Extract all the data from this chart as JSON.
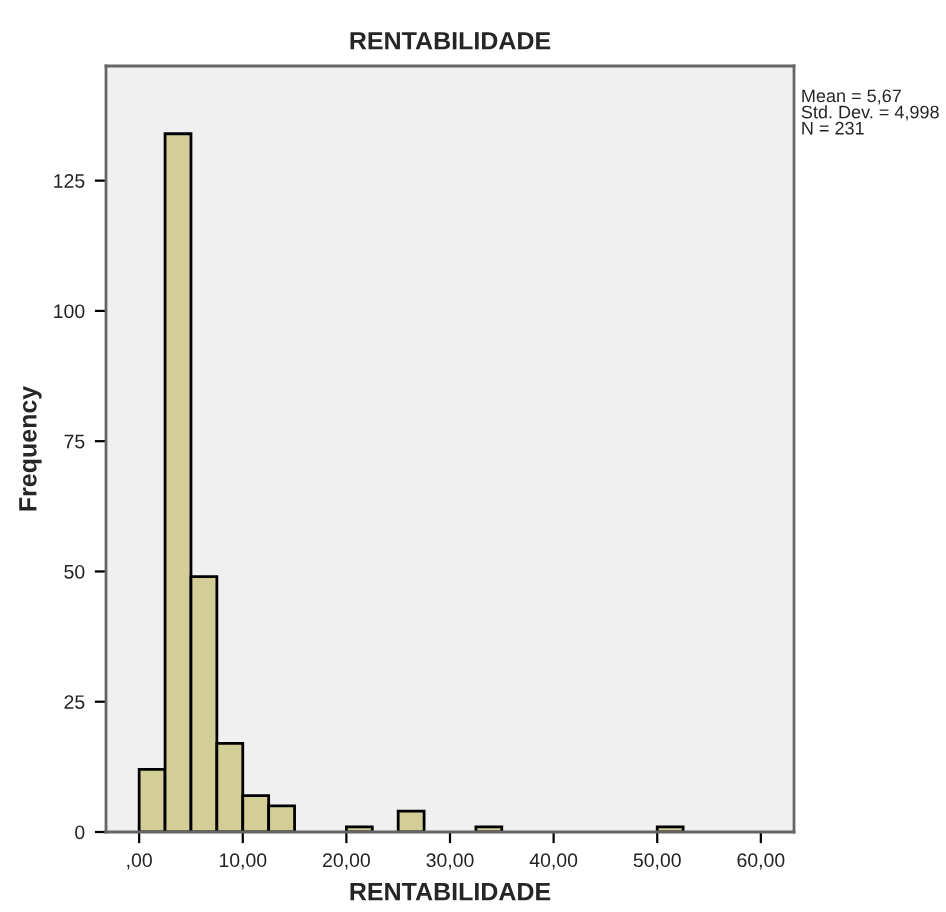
{
  "chart_data": {
    "type": "histogram",
    "title": "RENTABILIDADE",
    "xlabel": "RENTABILIDADE",
    "ylabel": "Frequency",
    "bins": [
      0,
      2.5,
      5,
      7.5,
      10,
      12.5,
      15,
      17.5,
      20,
      22.5,
      25,
      27.5,
      30,
      32.5,
      35,
      37.5,
      40,
      42.5,
      45,
      47.5,
      50,
      52.5
    ],
    "values": [
      12,
      134,
      49,
      17,
      7,
      5,
      0,
      0,
      1,
      0,
      4,
      0,
      0,
      1,
      0,
      0,
      0,
      0,
      0,
      0,
      1
    ],
    "color": "#d3ce97",
    "xlim": [
      -3.2,
      63.2
    ],
    "ylim": [
      0,
      147
    ],
    "xticks": [
      {
        "value": 0,
        "label": ",00"
      },
      {
        "value": 10,
        "label": "10,00"
      },
      {
        "value": 20,
        "label": "20,00"
      },
      {
        "value": 30,
        "label": "30,00"
      },
      {
        "value": 40,
        "label": "40,00"
      },
      {
        "value": 50,
        "label": "50,00"
      },
      {
        "value": 60,
        "label": "60,00"
      }
    ],
    "yticks": [
      0,
      25,
      50,
      75,
      100,
      125
    ],
    "annotations": [
      "Mean = 5,67\nStd. Dev. = 4,998\nN = 231"
    ],
    "grid": false,
    "legend": false
  }
}
